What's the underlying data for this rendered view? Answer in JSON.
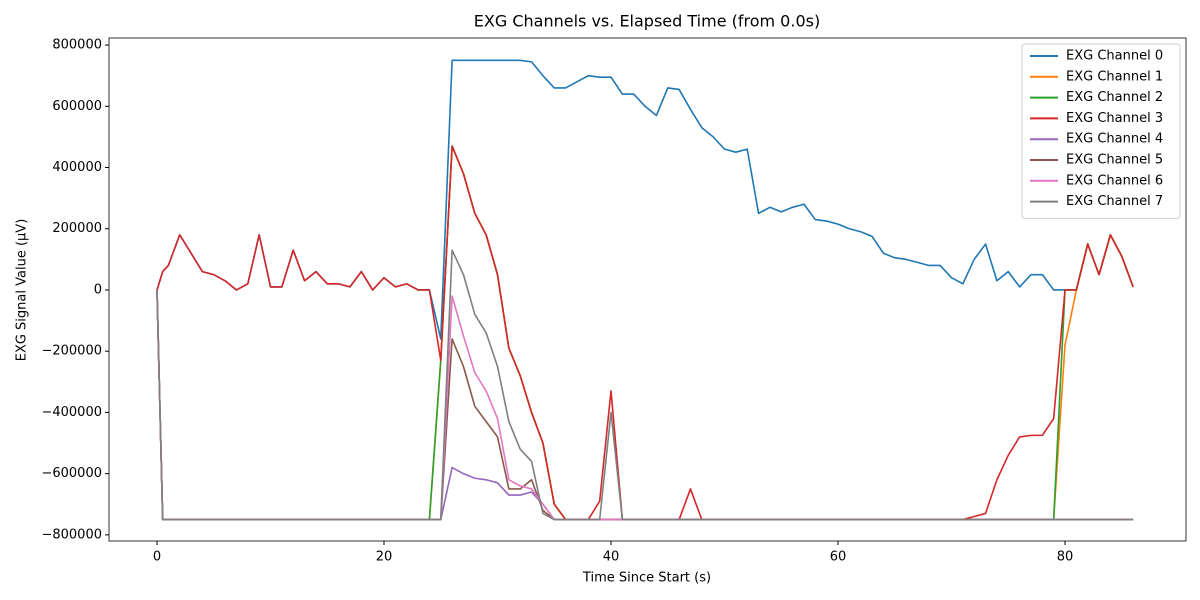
{
  "chart_data": {
    "type": "line",
    "title": "EXG Channels vs. Elapsed Time (from 0.0s)",
    "x_label": "Time Since Start (s)",
    "y_label": "EXG Signal Value (µV)",
    "xlim": [
      -4.23,
      90.66
    ],
    "ylim": [
      -820000,
      823000
    ],
    "xticks": [
      0,
      20,
      40,
      60,
      80
    ],
    "yticks": [
      {
        "value": -800000,
        "label": "−800000"
      },
      {
        "value": -600000,
        "label": "−600000"
      },
      {
        "value": -400000,
        "label": "−400000"
      },
      {
        "value": -200000,
        "label": "−200000"
      },
      0,
      200000,
      400000,
      600000,
      800000
    ],
    "legend": "upper right",
    "x": [
      0,
      0.5,
      1,
      2,
      3,
      4,
      5,
      6,
      7,
      8,
      9,
      10,
      11,
      12,
      13,
      14,
      15,
      16,
      17,
      18,
      19,
      20,
      21,
      22,
      23,
      24,
      25,
      26,
      27,
      28,
      29,
      30,
      31,
      32,
      33,
      34,
      35,
      36,
      37,
      38,
      39,
      40,
      41,
      42,
      43,
      44,
      45,
      46,
      47,
      48,
      49,
      50,
      51,
      52,
      53,
      54,
      55,
      56,
      57,
      58,
      59,
      60,
      61,
      62,
      63,
      64,
      65,
      66,
      67,
      68,
      69,
      70,
      71,
      72,
      73,
      74,
      75,
      76,
      77,
      78,
      79,
      80,
      81,
      82,
      83,
      84,
      85,
      86
    ],
    "series": [
      {
        "name": "EXG Channel 0",
        "color": "#1f77b4",
        "values": [
          0,
          60000,
          80000,
          180000,
          120000,
          60000,
          50000,
          30000,
          0,
          20000,
          180000,
          10000,
          10000,
          130000,
          30000,
          60000,
          20000,
          20000,
          10000,
          60000,
          0,
          40000,
          10000,
          20000,
          0,
          0,
          -160000,
          750000,
          750000,
          750000,
          750000,
          750000,
          750000,
          750000,
          745000,
          700000,
          660000,
          660000,
          680000,
          700000,
          695000,
          695000,
          640000,
          640000,
          600000,
          570000,
          660000,
          655000,
          590000,
          530000,
          500000,
          460000,
          450000,
          460000,
          250000,
          270000,
          255000,
          270000,
          280000,
          230000,
          225000,
          215000,
          200000,
          190000,
          175000,
          120000,
          105000,
          100000,
          90000,
          80000,
          80000,
          40000,
          20000,
          100000,
          150000,
          30000,
          60000,
          10000,
          50000,
          50000,
          0,
          0,
          0,
          150000,
          50000,
          180000,
          110000,
          10000
        ]
      },
      {
        "name": "EXG Channel 1",
        "color": "#ff7f0e",
        "values": [
          0,
          -750000,
          -750000,
          -750000,
          -750000,
          -750000,
          -750000,
          -750000,
          -750000,
          -750000,
          -750000,
          -750000,
          -750000,
          -750000,
          -750000,
          -750000,
          -750000,
          -750000,
          -750000,
          -750000,
          -750000,
          -750000,
          -750000,
          -750000,
          -750000,
          -750000,
          -230000,
          470000,
          380000,
          250000,
          180000,
          50000,
          -190000,
          -280000,
          -400000,
          -500000,
          -700000,
          -750000,
          -750000,
          -750000,
          -750000,
          -750000,
          -750000,
          -750000,
          -750000,
          -750000,
          -750000,
          -750000,
          -750000,
          -750000,
          -750000,
          -750000,
          -750000,
          -750000,
          -750000,
          -750000,
          -750000,
          -750000,
          -750000,
          -750000,
          -750000,
          -750000,
          -750000,
          -750000,
          -750000,
          -750000,
          -750000,
          -750000,
          -750000,
          -750000,
          -750000,
          -750000,
          -750000,
          -750000,
          -750000,
          -750000,
          -750000,
          -750000,
          -750000,
          -750000,
          -750000,
          -180000,
          0,
          150000,
          50000,
          180000,
          110000,
          10000
        ]
      },
      {
        "name": "EXG Channel 2",
        "color": "#2ca02c",
        "values": [
          0,
          -750000,
          -750000,
          -750000,
          -750000,
          -750000,
          -750000,
          -750000,
          -750000,
          -750000,
          -750000,
          -750000,
          -750000,
          -750000,
          -750000,
          -750000,
          -750000,
          -750000,
          -750000,
          -750000,
          -750000,
          -750000,
          -750000,
          -750000,
          -750000,
          -750000,
          -230000,
          470000,
          380000,
          250000,
          180000,
          50000,
          -190000,
          -280000,
          -400000,
          -500000,
          -700000,
          -750000,
          -750000,
          -750000,
          -750000,
          -750000,
          -750000,
          -750000,
          -750000,
          -750000,
          -750000,
          -750000,
          -750000,
          -750000,
          -750000,
          -750000,
          -750000,
          -750000,
          -750000,
          -750000,
          -750000,
          -750000,
          -750000,
          -750000,
          -750000,
          -750000,
          -750000,
          -750000,
          -750000,
          -750000,
          -750000,
          -750000,
          -750000,
          -750000,
          -750000,
          -750000,
          -750000,
          -750000,
          -750000,
          -750000,
          -750000,
          -750000,
          -750000,
          -750000,
          -750000,
          0,
          0,
          150000,
          50000,
          180000,
          110000,
          10000
        ]
      },
      {
        "name": "EXG Channel 3",
        "color": "#d62728",
        "values": [
          0,
          60000,
          80000,
          180000,
          120000,
          60000,
          50000,
          30000,
          0,
          20000,
          180000,
          10000,
          10000,
          130000,
          30000,
          60000,
          20000,
          20000,
          10000,
          60000,
          0,
          40000,
          10000,
          20000,
          0,
          0,
          -230000,
          470000,
          380000,
          250000,
          180000,
          50000,
          -190000,
          -280000,
          -400000,
          -500000,
          -700000,
          -750000,
          -750000,
          -750000,
          -690000,
          -330000,
          -750000,
          -750000,
          -750000,
          -750000,
          -750000,
          -750000,
          -650000,
          -750000,
          -750000,
          -750000,
          -750000,
          -750000,
          -750000,
          -750000,
          -750000,
          -750000,
          -750000,
          -750000,
          -750000,
          -750000,
          -750000,
          -750000,
          -750000,
          -750000,
          -750000,
          -750000,
          -750000,
          -750000,
          -750000,
          -750000,
          -750000,
          -740000,
          -730000,
          -620000,
          -540000,
          -480000,
          -475000,
          -475000,
          -420000,
          0,
          0,
          150000,
          50000,
          180000,
          110000,
          10000
        ]
      },
      {
        "name": "EXG Channel 4",
        "color": "#9467bd",
        "values": [
          0,
          -750000,
          -750000,
          -750000,
          -750000,
          -750000,
          -750000,
          -750000,
          -750000,
          -750000,
          -750000,
          -750000,
          -750000,
          -750000,
          -750000,
          -750000,
          -750000,
          -750000,
          -750000,
          -750000,
          -750000,
          -750000,
          -750000,
          -750000,
          -750000,
          -750000,
          -750000,
          -580000,
          -600000,
          -615000,
          -620000,
          -630000,
          -670000,
          -670000,
          -660000,
          -700000,
          -750000,
          -750000,
          -750000,
          -750000,
          -750000,
          -750000,
          -750000,
          -750000,
          -750000,
          -750000,
          -750000,
          -750000,
          -750000,
          -750000,
          -750000,
          -750000,
          -750000,
          -750000,
          -750000,
          -750000,
          -750000,
          -750000,
          -750000,
          -750000,
          -750000,
          -750000,
          -750000,
          -750000,
          -750000,
          -750000,
          -750000,
          -750000,
          -750000,
          -750000,
          -750000,
          -750000,
          -750000,
          -750000,
          -750000,
          -750000,
          -750000,
          -750000,
          -750000,
          -750000,
          -750000,
          -750000,
          -750000,
          -750000,
          -750000,
          -750000,
          -750000,
          -750000
        ]
      },
      {
        "name": "EXG Channel 5",
        "color": "#8c564b",
        "values": [
          0,
          -750000,
          -750000,
          -750000,
          -750000,
          -750000,
          -750000,
          -750000,
          -750000,
          -750000,
          -750000,
          -750000,
          -750000,
          -750000,
          -750000,
          -750000,
          -750000,
          -750000,
          -750000,
          -750000,
          -750000,
          -750000,
          -750000,
          -750000,
          -750000,
          -750000,
          -750000,
          -160000,
          -250000,
          -380000,
          -430000,
          -480000,
          -650000,
          -650000,
          -620000,
          -720000,
          -750000,
          -750000,
          -750000,
          -750000,
          -750000,
          -750000,
          -750000,
          -750000,
          -750000,
          -750000,
          -750000,
          -750000,
          -750000,
          -750000,
          -750000,
          -750000,
          -750000,
          -750000,
          -750000,
          -750000,
          -750000,
          -750000,
          -750000,
          -750000,
          -750000,
          -750000,
          -750000,
          -750000,
          -750000,
          -750000,
          -750000,
          -750000,
          -750000,
          -750000,
          -750000,
          -750000,
          -750000,
          -750000,
          -750000,
          -750000,
          -750000,
          -750000,
          -750000,
          -750000,
          -750000,
          -750000,
          -750000,
          -750000,
          -750000,
          -750000,
          -750000,
          -750000
        ]
      },
      {
        "name": "EXG Channel 6",
        "color": "#e377c2",
        "values": [
          0,
          -750000,
          -750000,
          -750000,
          -750000,
          -750000,
          -750000,
          -750000,
          -750000,
          -750000,
          -750000,
          -750000,
          -750000,
          -750000,
          -750000,
          -750000,
          -750000,
          -750000,
          -750000,
          -750000,
          -750000,
          -750000,
          -750000,
          -750000,
          -750000,
          -750000,
          -750000,
          -20000,
          -150000,
          -270000,
          -330000,
          -420000,
          -620000,
          -640000,
          -650000,
          -700000,
          -750000,
          -750000,
          -750000,
          -750000,
          -750000,
          -750000,
          -750000,
          -750000,
          -750000,
          -750000,
          -750000,
          -750000,
          -750000,
          -750000,
          -750000,
          -750000,
          -750000,
          -750000,
          -750000,
          -750000,
          -750000,
          -750000,
          -750000,
          -750000,
          -750000,
          -750000,
          -750000,
          -750000,
          -750000,
          -750000,
          -750000,
          -750000,
          -750000,
          -750000,
          -750000,
          -750000,
          -750000,
          -750000,
          -750000,
          -750000,
          -750000,
          -750000,
          -750000,
          -750000,
          -750000,
          -750000,
          -750000,
          -750000,
          -750000,
          -750000,
          -750000,
          -750000
        ]
      },
      {
        "name": "EXG Channel 7",
        "color": "#7f7f7f",
        "values": [
          0,
          -750000,
          -750000,
          -750000,
          -750000,
          -750000,
          -750000,
          -750000,
          -750000,
          -750000,
          -750000,
          -750000,
          -750000,
          -750000,
          -750000,
          -750000,
          -750000,
          -750000,
          -750000,
          -750000,
          -750000,
          -750000,
          -750000,
          -750000,
          -750000,
          -750000,
          -750000,
          130000,
          50000,
          -80000,
          -140000,
          -250000,
          -430000,
          -520000,
          -560000,
          -730000,
          -750000,
          -750000,
          -750000,
          -750000,
          -750000,
          -400000,
          -750000,
          -750000,
          -750000,
          -750000,
          -750000,
          -750000,
          -750000,
          -750000,
          -750000,
          -750000,
          -750000,
          -750000,
          -750000,
          -750000,
          -750000,
          -750000,
          -750000,
          -750000,
          -750000,
          -750000,
          -750000,
          -750000,
          -750000,
          -750000,
          -750000,
          -750000,
          -750000,
          -750000,
          -750000,
          -750000,
          -750000,
          -750000,
          -750000,
          -750000,
          -750000,
          -750000,
          -750000,
          -750000,
          -750000,
          -750000,
          -750000,
          -750000,
          -750000,
          -750000,
          -750000,
          -750000
        ]
      }
    ]
  }
}
